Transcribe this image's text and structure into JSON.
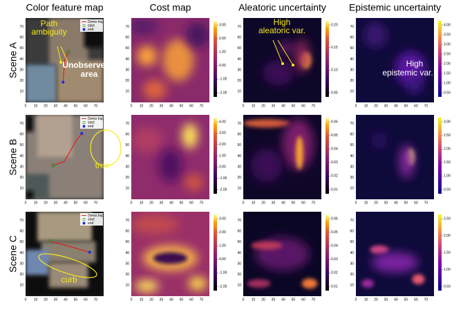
{
  "columns": [
    "Color feature map",
    "Cost map",
    "Aleatoric uncertainty",
    "Epistemic uncertainty"
  ],
  "rows": [
    "Scene A",
    "Scene B",
    "Scene C"
  ],
  "axis_ticks": [
    "0",
    "10",
    "20",
    "30",
    "40",
    "50",
    "60",
    "70"
  ],
  "legend": [
    "Demo traj.",
    "start",
    "end"
  ],
  "colorbars": [
    [
      [
        "3.00",
        "2.00",
        "1.00",
        "0.00",
        "-1.00",
        "-2.00"
      ],
      [
        "0.20",
        "0.15",
        "0.10",
        "0.05"
      ],
      [
        "4.00",
        "3.50",
        "3.00",
        "2.50",
        "2.00",
        "1.50",
        "1.00",
        "0.50"
      ]
    ],
    [
      [
        "4.00",
        "3.00",
        "2.00",
        "1.00",
        "0.00",
        "-1.00",
        "-2.00"
      ],
      [
        "0.06",
        "0.05",
        "0.04",
        "0.03",
        "0.02",
        "0.01"
      ],
      [
        "3.00",
        "2.50",
        "2.00",
        "1.50",
        "1.00",
        "0.50"
      ]
    ],
    [
      [
        "3.00",
        "2.00",
        "1.00",
        "0.00",
        "-1.00",
        "-2.00"
      ],
      [
        "0.06",
        "0.05",
        "0.04",
        "0.03",
        "0.02",
        "0.01"
      ],
      [
        "2.50",
        "2.00",
        "1.50",
        "1.00",
        "0.50"
      ]
    ]
  ],
  "annotations": {
    "path_ambiguity": "Path ambiguity",
    "unobserved_area": "Unobserved area",
    "high_aleatoric": "High aleatoric var.",
    "high_epistemic": "High epistemic var.",
    "tree": "tree",
    "curb": "curb"
  }
}
